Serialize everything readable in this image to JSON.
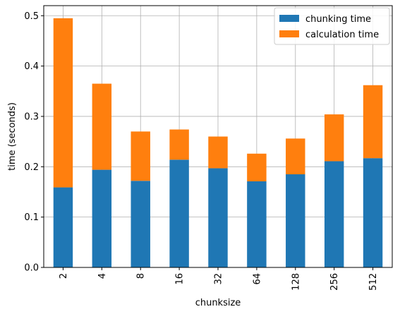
{
  "chart_data": {
    "type": "bar",
    "stacked": true,
    "categories": [
      "2",
      "4",
      "8",
      "16",
      "32",
      "64",
      "128",
      "256",
      "512"
    ],
    "series": [
      {
        "name": "chunking time",
        "color": "#1f77b4",
        "values": [
          0.159,
          0.194,
          0.172,
          0.214,
          0.197,
          0.171,
          0.185,
          0.211,
          0.217
        ]
      },
      {
        "name": "calculation time",
        "color": "#ff7f0e",
        "values": [
          0.336,
          0.171,
          0.098,
          0.06,
          0.063,
          0.055,
          0.071,
          0.093,
          0.145
        ]
      }
    ],
    "xlabel": "chunksize",
    "ylabel": "time (seconds)",
    "ylim": [
      0,
      0.52
    ],
    "yticks": [
      "0.0",
      "0.1",
      "0.2",
      "0.3",
      "0.4",
      "0.5"
    ],
    "grid": true,
    "legend_position": "top-right"
  }
}
